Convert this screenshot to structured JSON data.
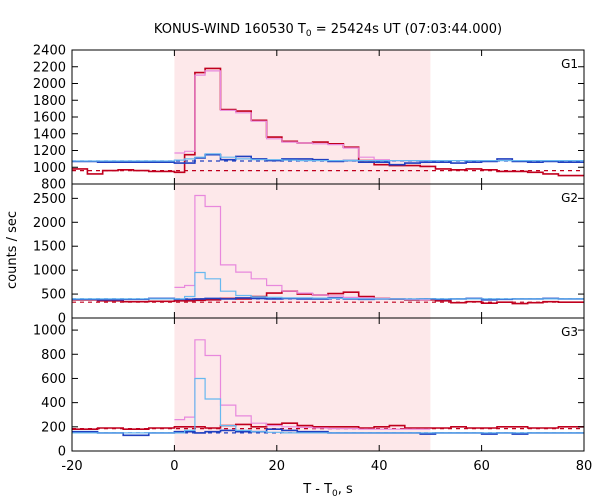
{
  "chart_data": {
    "type": "line",
    "title": "KONUS-WIND 160530 T",
    "title_sub": "0",
    "title_rest": " = 25424s UT (07:03:44.000)",
    "ylabel": "counts / sec",
    "xlabel": "T - T",
    "xlabel_sub": "0",
    "xlabel_rest": ", s",
    "xlim": [
      -20,
      80
    ],
    "xticks": [
      -20,
      0,
      20,
      40,
      60,
      80
    ],
    "shade": [
      0,
      50
    ],
    "shade_color": "#fde8ea",
    "colors": {
      "red": "#c0001e",
      "blue": "#2040c0",
      "pink": "#e888dd",
      "lightblue": "#66b8f0",
      "red_dash": "#c0001e",
      "blue_dash": "#2040c0"
    },
    "panels": [
      {
        "label": "G1",
        "ylim": [
          800,
          2400
        ],
        "yticks": [
          800,
          1000,
          1200,
          1400,
          1600,
          1800,
          2000,
          2200,
          2400
        ],
        "bg_red": 960,
        "bg_blue": 1075,
        "series": [
          {
            "name": "red",
            "edges": [
              -20,
              -17,
              -14,
              -11,
              -8,
              -5,
              0,
              2,
              4,
              6,
              9,
              12,
              15,
              18,
              21,
              24,
              27,
              30,
              33,
              36,
              39,
              42,
              45,
              48,
              51,
              54,
              57,
              60,
              63,
              66,
              69,
              72,
              75,
              80
            ],
            "values": [
              980,
              920,
              960,
              970,
              960,
              950,
              940,
              1150,
              2130,
              2180,
              1690,
              1670,
              1560,
              1360,
              1310,
              1290,
              1300,
              1280,
              1240,
              1080,
              1030,
              1020,
              1020,
              1010,
              980,
              970,
              980,
              970,
              950,
              950,
              940,
              920,
              900
            ]
          },
          {
            "name": "blue",
            "edges": [
              -20,
              -15,
              -10,
              -5,
              0,
              4,
              6,
              9,
              12,
              15,
              18,
              21,
              24,
              27,
              30,
              33,
              36,
              39,
              42,
              45,
              48,
              51,
              54,
              57,
              60,
              63,
              66,
              69,
              72,
              75,
              80
            ],
            "values": [
              1070,
              1060,
              1060,
              1060,
              1050,
              1110,
              1150,
              1090,
              1130,
              1100,
              1080,
              1100,
              1100,
              1090,
              1070,
              1080,
              1060,
              1060,
              1030,
              1050,
              1060,
              1060,
              1050,
              1060,
              1070,
              1100,
              1070,
              1060,
              1070,
              1060
            ]
          },
          {
            "name": "pink",
            "edges": [
              0,
              2,
              4,
              6,
              9,
              12,
              15,
              18,
              21,
              24,
              27,
              30,
              33,
              36,
              39,
              42,
              45,
              48,
              50
            ],
            "values": [
              1170,
              1190,
              2100,
              2150,
              1680,
              1650,
              1550,
              1340,
              1300,
              1290,
              1280,
              1270,
              1230,
              1120,
              1090,
              1080,
              1080,
              1080
            ]
          },
          {
            "name": "lightblue",
            "edges": [
              -20,
              0,
              2,
              4,
              6,
              9,
              12,
              15,
              18,
              21,
              24,
              27,
              30,
              33,
              36,
              39,
              42,
              45,
              48,
              51,
              54,
              57,
              60,
              63,
              66,
              69,
              72,
              75,
              80
            ],
            "values": [
              1075,
              1085,
              1100,
              1120,
              1160,
              1120,
              1100,
              1090,
              1090,
              1085,
              1080,
              1080,
              1080,
              1080,
              1080,
              1080,
              1080,
              1080,
              1080,
              1080,
              1080,
              1080,
              1080,
              1080,
              1080,
              1080,
              1080,
              1080
            ]
          }
        ]
      },
      {
        "label": "G2",
        "ylim": [
          0,
          2800
        ],
        "yticks": [
          0,
          500,
          1000,
          1500,
          2000,
          2500
        ],
        "bg_red": 330,
        "bg_blue": 400,
        "series": [
          {
            "name": "red",
            "edges": [
              -20,
              -15,
              -10,
              -5,
              0,
              4,
              6,
              9,
              12,
              15,
              18,
              21,
              24,
              27,
              30,
              33,
              36,
              39,
              42,
              45,
              48,
              51,
              54,
              57,
              60,
              63,
              66,
              69,
              72,
              75,
              80
            ],
            "values": [
              380,
              360,
              340,
              350,
              360,
              370,
              380,
              410,
              400,
              450,
              520,
              560,
              500,
              480,
              510,
              540,
              450,
              410,
              400,
              380,
              380,
              360,
              320,
              340,
              310,
              330,
              300,
              320,
              340,
              330
            ]
          },
          {
            "name": "blue",
            "edges": [
              -20,
              -15,
              -10,
              -5,
              0,
              4,
              6,
              9,
              12,
              15,
              18,
              21,
              24,
              27,
              30,
              33,
              36,
              39,
              42,
              45,
              48,
              51,
              54,
              57,
              60,
              63,
              66,
              69,
              72,
              75,
              80
            ],
            "values": [
              390,
              380,
              390,
              410,
              390,
              400,
              410,
              400,
              420,
              410,
              400,
              410,
              400,
              400,
              420,
              400,
              390,
              400,
              400,
              390,
              400,
              390,
              400,
              410,
              380,
              390,
              400,
              400,
              410,
              400
            ]
          },
          {
            "name": "pink",
            "edges": [
              0,
              2,
              4,
              6,
              9,
              12,
              15,
              18,
              21,
              24,
              27,
              30,
              33,
              36,
              39,
              42,
              45,
              48,
              50
            ],
            "values": [
              640,
              680,
              2560,
              2330,
              1110,
              960,
              820,
              680,
              560,
              520,
              480,
              460,
              430,
              420,
              410,
              400,
              390,
              380
            ]
          },
          {
            "name": "lightblue",
            "edges": [
              -20,
              0,
              2,
              4,
              6,
              9,
              12,
              15,
              18,
              21,
              24,
              27,
              30,
              33,
              36,
              39,
              42,
              45,
              48,
              51,
              54,
              57,
              60,
              63,
              66,
              69,
              72,
              75,
              80
            ],
            "values": [
              400,
              400,
              450,
              950,
              820,
              560,
              470,
              440,
              430,
              420,
              420,
              415,
              410,
              405,
              400,
              400,
              400,
              400,
              400,
              400,
              400,
              400,
              400,
              400,
              400,
              400,
              400,
              400
            ]
          }
        ]
      },
      {
        "label": "G3",
        "ylim": [
          0,
          1100
        ],
        "yticks": [
          0,
          200,
          400,
          600,
          800,
          1000
        ],
        "bg_red": 185,
        "bg_blue": 150,
        "series": [
          {
            "name": "red",
            "edges": [
              -20,
              -15,
              -10,
              -5,
              0,
              4,
              6,
              9,
              12,
              15,
              18,
              21,
              24,
              27,
              30,
              33,
              36,
              39,
              42,
              45,
              48,
              51,
              54,
              57,
              60,
              63,
              66,
              69,
              72,
              75,
              80
            ],
            "values": [
              180,
              190,
              180,
              190,
              200,
              200,
              190,
              210,
              220,
              200,
              220,
              230,
              210,
              200,
              200,
              200,
              190,
              200,
              210,
              190,
              190,
              190,
              200,
              190,
              190,
              200,
              200,
              190,
              190,
              200
            ]
          },
          {
            "name": "blue",
            "edges": [
              -20,
              -15,
              -10,
              -5,
              0,
              4,
              6,
              9,
              12,
              15,
              18,
              21,
              24,
              27,
              30,
              33,
              36,
              39,
              42,
              45,
              48,
              51,
              54,
              57,
              60,
              63,
              66,
              69,
              72,
              75,
              80
            ],
            "values": [
              160,
              150,
              130,
              150,
              160,
              150,
              160,
              170,
              160,
              160,
              180,
              170,
              160,
              160,
              150,
              150,
              150,
              150,
              150,
              150,
              140,
              150,
              150,
              150,
              140,
              150,
              140,
              150,
              150,
              150
            ]
          },
          {
            "name": "pink",
            "edges": [
              0,
              2,
              4,
              6,
              9,
              12,
              15,
              18,
              21,
              24,
              27,
              30,
              33,
              36,
              39,
              42,
              45,
              48,
              50
            ],
            "values": [
              260,
              280,
              920,
              790,
              380,
              290,
              230,
              210,
              200,
              195,
              190,
              185,
              185,
              180,
              180,
              180,
              180,
              180
            ]
          },
          {
            "name": "lightblue",
            "edges": [
              -20,
              0,
              2,
              4,
              6,
              9,
              12,
              15,
              18,
              21,
              24,
              27,
              30,
              33,
              36,
              39,
              42,
              45,
              48,
              51,
              54,
              57,
              60,
              63,
              66,
              69,
              72,
              75,
              80
            ],
            "values": [
              150,
              150,
              170,
              600,
              430,
              210,
              170,
              160,
              155,
              150,
              150,
              150,
              150,
              150,
              150,
              150,
              150,
              150,
              150,
              150,
              150,
              150,
              150,
              150,
              150,
              150,
              150,
              150
            ]
          }
        ]
      }
    ]
  }
}
